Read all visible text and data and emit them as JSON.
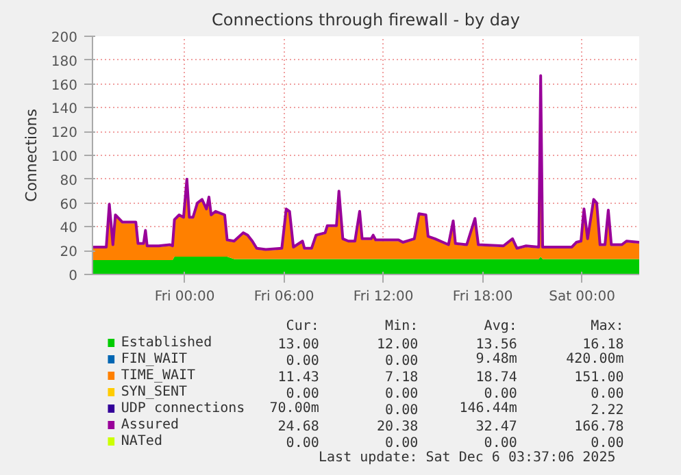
{
  "chart_data": {
    "type": "area",
    "stacked": true,
    "title": "Connections through firewall - by day",
    "ylabel": "Connections",
    "x": [
      "2025-12-04T18:26",
      "2025-12-04T19:16",
      "2025-12-04T19:27",
      "2025-12-04T19:40",
      "2025-12-04T19:49",
      "2025-12-04T20:14",
      "2025-12-04T21:03",
      "2025-12-04T21:11",
      "2025-12-04T21:31",
      "2025-12-04T21:38",
      "2025-12-04T21:44",
      "2025-12-04T22:26",
      "2025-12-04T23:07",
      "2025-12-04T23:16",
      "2025-12-04T23:23",
      "2025-12-04T23:40",
      "2025-12-04T23:56",
      "2025-12-05T00:08",
      "2025-12-05T00:17",
      "2025-12-05T00:30",
      "2025-12-05T00:46",
      "2025-12-05T01:03",
      "2025-12-05T01:19",
      "2025-12-05T01:28",
      "2025-12-05T01:36",
      "2025-12-05T01:52",
      "2025-12-05T02:25",
      "2025-12-05T02:34",
      "2025-12-05T02:59",
      "2025-12-05T03:32",
      "2025-12-05T03:48",
      "2025-12-05T04:05",
      "2025-12-05T04:21",
      "2025-12-05T04:54",
      "2025-12-05T05:52",
      "2025-12-05T06:08",
      "2025-12-05T06:20",
      "2025-12-05T06:34",
      "2025-12-05T07:07",
      "2025-12-05T07:14",
      "2025-12-05T07:40",
      "2025-12-05T07:56",
      "2025-12-05T08:29",
      "2025-12-05T08:37",
      "2025-12-05T09:10",
      "2025-12-05T09:19",
      "2025-12-05T09:33",
      "2025-12-05T09:53",
      "2025-12-05T10:17",
      "2025-12-05T10:34",
      "2025-12-05T10:43",
      "2025-12-05T11:16",
      "2025-12-05T11:23",
      "2025-12-05T11:32",
      "2025-12-05T12:55",
      "2025-12-05T13:11",
      "2025-12-05T13:52",
      "2025-12-05T14:09",
      "2025-12-05T14:34",
      "2025-12-05T14:42",
      "2025-12-05T15:07",
      "2025-12-05T15:56",
      "2025-12-05T16:13",
      "2025-12-05T16:21",
      "2025-12-05T17:02",
      "2025-12-05T17:32",
      "2025-12-05T17:44",
      "2025-12-05T19:15",
      "2025-12-05T19:48",
      "2025-12-05T20:04",
      "2025-12-05T20:37",
      "2025-12-05T21:23",
      "2025-12-05T21:30",
      "2025-12-05T21:37",
      "2025-12-05T23:23",
      "2025-12-05T23:39",
      "2025-12-05T23:56",
      "2025-12-06T00:07",
      "2025-12-06T00:20",
      "2025-12-06T00:42",
      "2025-12-06T00:53",
      "2025-12-06T01:05",
      "2025-12-06T01:23",
      "2025-12-06T01:35",
      "2025-12-06T01:46",
      "2025-12-06T02:24",
      "2025-12-06T02:41",
      "2025-12-06T03:27"
    ],
    "series": [
      {
        "name": "Established",
        "color": "#00cc00",
        "values": [
          12,
          12,
          12,
          12,
          12,
          12,
          12,
          12,
          12,
          12,
          12,
          12,
          12,
          12,
          15,
          15,
          15,
          15,
          15,
          15,
          15,
          15,
          15,
          15,
          15,
          15,
          15,
          15,
          13,
          13,
          13,
          13,
          13,
          13,
          13,
          13,
          13,
          13,
          13,
          13,
          13,
          13,
          13,
          13,
          13,
          13,
          13,
          13,
          13,
          13,
          13,
          13,
          13,
          13,
          13,
          13,
          13,
          13,
          13,
          13,
          13,
          13,
          13,
          13,
          13,
          13,
          13,
          13,
          13,
          13,
          13,
          13,
          15,
          13,
          13,
          13,
          13,
          13,
          13,
          13,
          13,
          13,
          13,
          13,
          13,
          13,
          13,
          13
        ]
      },
      {
        "name": "FIN_WAIT",
        "color": "#0066b3",
        "values": [
          null,
          null,
          null,
          null,
          null,
          null,
          null,
          null,
          null,
          null,
          null,
          null,
          null,
          null,
          null,
          null,
          null,
          null,
          null,
          null,
          null,
          null,
          null,
          null,
          null,
          null,
          null,
          null,
          null,
          null,
          null,
          null,
          null,
          null,
          null,
          null,
          null,
          null,
          null,
          null,
          null,
          null,
          null,
          null,
          null,
          null,
          null,
          null,
          null,
          null,
          null,
          null,
          null,
          null,
          null,
          null,
          null,
          null,
          null,
          null,
          null,
          null,
          null,
          null,
          null,
          null,
          null,
          null,
          null,
          null,
          null,
          null,
          null,
          null,
          null,
          null,
          null,
          null,
          null,
          null,
          null,
          null,
          null,
          null,
          null,
          null,
          null,
          null
        ]
      },
      {
        "name": "TIME_WAIT",
        "color": "#ff8000",
        "values": [
          10,
          10,
          46,
          12,
          37,
          31,
          31,
          13,
          13,
          24,
          11,
          11,
          12,
          11,
          30,
          34,
          32,
          64,
          32,
          32,
          44,
          47,
          39,
          49,
          34,
          37,
          34,
          13,
          14,
          21,
          19,
          14,
          8,
          7,
          8,
          41,
          39,
          9,
          14,
          8,
          8,
          19,
          21,
          27,
          27,
          56,
          16,
          14,
          14,
          39,
          16,
          16,
          19,
          15,
          15,
          13,
          16,
          37,
          36,
          18,
          16,
          11,
          31,
          12,
          11,
          33,
          11,
          10,
          16,
          8,
          10,
          9,
          151,
          9,
          9,
          13,
          14,
          41,
          16,
          49,
          46,
          11,
          11,
          40,
          11,
          11,
          14,
          13
        ]
      },
      {
        "name": "SYN_SENT",
        "color": "#ffcc00",
        "values": [
          null,
          null,
          null,
          null,
          null,
          null,
          null,
          null,
          null,
          null,
          null,
          null,
          null,
          null,
          null,
          null,
          null,
          null,
          null,
          null,
          null,
          null,
          null,
          null,
          null,
          null,
          null,
          null,
          null,
          null,
          null,
          null,
          null,
          null,
          null,
          null,
          null,
          null,
          null,
          null,
          null,
          null,
          null,
          null,
          null,
          null,
          null,
          null,
          null,
          null,
          null,
          null,
          null,
          null,
          null,
          null,
          null,
          null,
          null,
          null,
          null,
          null,
          null,
          null,
          null,
          null,
          null,
          null,
          null,
          null,
          null,
          null,
          null,
          null,
          null,
          null,
          null,
          null,
          null,
          null,
          null,
          null,
          null,
          null,
          null,
          null,
          null,
          null
        ]
      },
      {
        "name": "UDP connections",
        "color": "#330099",
        "values": [
          null,
          null,
          null,
          null,
          null,
          null,
          null,
          null,
          null,
          null,
          null,
          null,
          null,
          null,
          null,
          null,
          null,
          null,
          null,
          null,
          null,
          null,
          null,
          null,
          null,
          null,
          null,
          null,
          null,
          null,
          null,
          null,
          null,
          null,
          null,
          null,
          null,
          null,
          null,
          null,
          null,
          null,
          null,
          null,
          null,
          null,
          null,
          null,
          null,
          null,
          null,
          null,
          null,
          null,
          null,
          null,
          null,
          null,
          null,
          null,
          null,
          null,
          null,
          null,
          null,
          null,
          null,
          null,
          null,
          null,
          null,
          null,
          null,
          null,
          null,
          null,
          null,
          null,
          null,
          null,
          null,
          null,
          null,
          null,
          null,
          null,
          null,
          null
        ]
      },
      {
        "name": "Assured",
        "color": "#990099",
        "type": "line",
        "values": [
          23,
          23,
          59,
          25,
          50,
          44,
          44,
          26,
          26,
          37,
          24,
          24,
          25,
          24,
          46,
          50,
          48,
          80,
          48,
          48,
          60,
          63,
          55,
          65,
          50,
          53,
          50,
          29,
          28,
          35,
          33,
          28,
          22,
          21,
          22,
          55,
          53,
          23,
          28,
          22,
          22,
          33,
          35,
          41,
          41,
          70,
          30,
          28,
          28,
          53,
          30,
          30,
          33,
          29,
          29,
          27,
          30,
          51,
          50,
          32,
          30,
          25,
          45,
          26,
          25,
          47,
          25,
          24,
          30,
          22,
          24,
          23,
          167,
          23,
          23,
          27,
          28,
          55,
          30,
          63,
          60,
          25,
          25,
          54,
          25,
          25,
          28,
          27
        ]
      },
      {
        "name": "NATed",
        "color": "#ccff00",
        "type": "line",
        "values": [
          null,
          null,
          null,
          null,
          null,
          null,
          null,
          null,
          null,
          null,
          null,
          null,
          null,
          null,
          null,
          null,
          null,
          null,
          null,
          null,
          null,
          null,
          null,
          null,
          null,
          null,
          null,
          null,
          null,
          null,
          null,
          null,
          null,
          null,
          null,
          null,
          null,
          null,
          null,
          null,
          null,
          null,
          null,
          null,
          null,
          null,
          null,
          null,
          null,
          null,
          null,
          null,
          null,
          null,
          null,
          null,
          null,
          null,
          null,
          null,
          null,
          null,
          null,
          null,
          null,
          null,
          null,
          null,
          null,
          null,
          null,
          null,
          null,
          null,
          null,
          null,
          null,
          null,
          null,
          null,
          null,
          null,
          null,
          null,
          null,
          null,
          null,
          null
        ]
      }
    ],
    "xlim": [
      "2025-12-04T18:26",
      "2025-12-06T03:27"
    ],
    "ylim": [
      0,
      200
    ],
    "xticks": [
      {
        "value": "2025-12-05T00:00",
        "label": "Fri 00:00"
      },
      {
        "value": "2025-12-05T06:00",
        "label": "Fri 06:00"
      },
      {
        "value": "2025-12-05T12:00",
        "label": "Fri 12:00"
      },
      {
        "value": "2025-12-05T18:00",
        "label": "Fri 18:00"
      },
      {
        "value": "2025-12-06T00:00",
        "label": "Sat 00:00"
      }
    ],
    "yticks": [
      0,
      20,
      40,
      60,
      80,
      100,
      120,
      140,
      160,
      180,
      200
    ],
    "grid": true,
    "legend": "bottom",
    "marker": "none",
    "line_style": "solid",
    "annotations": [
      "Cur:",
      "Min:",
      "Avg:",
      "Max:",
      "13.00",
      "12.00",
      "13.56",
      "16.18",
      "0.00",
      "0.00",
      "9.48m",
      "420.00m",
      "11.43",
      "7.18",
      "18.74",
      "151.00",
      "0.00",
      "0.00",
      "0.00",
      "0.00",
      "70.00m",
      "0.00",
      "146.44m",
      "2.22",
      "24.68",
      "20.38",
      "32.47",
      "166.78",
      "0.00",
      "0.00",
      "0.00",
      "0.00",
      "Last update: Sat Dec  6 03:37:06 2025"
    ]
  }
}
